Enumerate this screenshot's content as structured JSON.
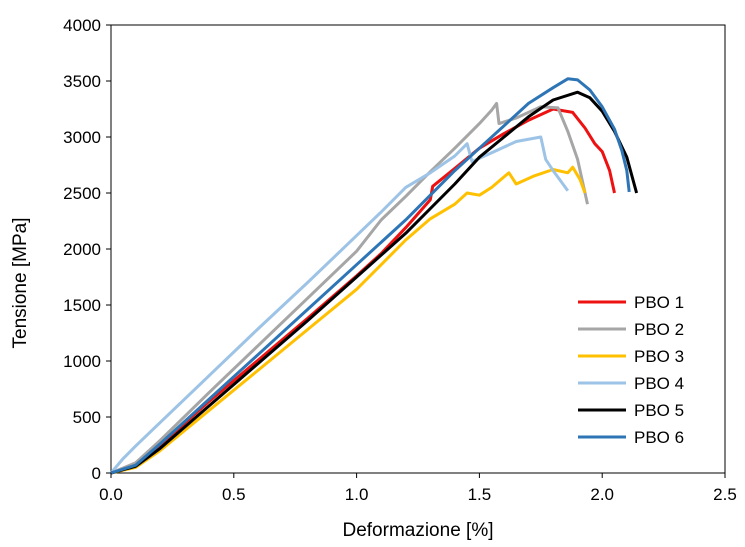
{
  "chart_data": {
    "type": "line",
    "title": "",
    "xlabel": "Deformazione [%]",
    "ylabel": "Tensione [MPa]",
    "xlim": [
      0,
      2.5
    ],
    "ylim": [
      0,
      4000
    ],
    "x_ticks": [
      "0.0",
      "0.5",
      "1.0",
      "1.5",
      "2.0",
      "2.5"
    ],
    "y_ticks": [
      "0",
      "500",
      "1000",
      "1500",
      "2000",
      "2500",
      "3000",
      "3500",
      "4000"
    ],
    "grid": false,
    "legend_position": "right",
    "series": [
      {
        "name": "PBO 1",
        "color": "#ee1111",
        "points": [
          [
            0,
            0
          ],
          [
            0.1,
            70
          ],
          [
            0.2,
            250
          ],
          [
            0.4,
            640
          ],
          [
            0.6,
            1010
          ],
          [
            0.8,
            1380
          ],
          [
            1.0,
            1760
          ],
          [
            1.1,
            1960
          ],
          [
            1.2,
            2190
          ],
          [
            1.3,
            2440
          ],
          [
            1.31,
            2560
          ],
          [
            1.4,
            2720
          ],
          [
            1.5,
            2900
          ],
          [
            1.6,
            3030
          ],
          [
            1.7,
            3150
          ],
          [
            1.8,
            3250
          ],
          [
            1.88,
            3220
          ],
          [
            1.93,
            3080
          ],
          [
            1.97,
            2940
          ],
          [
            2.0,
            2870
          ],
          [
            2.03,
            2700
          ],
          [
            2.05,
            2500
          ]
        ]
      },
      {
        "name": "PBO 2",
        "color": "#a6a6a6",
        "points": [
          [
            0,
            0
          ],
          [
            0.1,
            90
          ],
          [
            0.2,
            290
          ],
          [
            0.4,
            720
          ],
          [
            0.6,
            1140
          ],
          [
            0.8,
            1560
          ],
          [
            1.0,
            1980
          ],
          [
            1.1,
            2260
          ],
          [
            1.2,
            2470
          ],
          [
            1.3,
            2690
          ],
          [
            1.4,
            2900
          ],
          [
            1.5,
            3120
          ],
          [
            1.55,
            3240
          ],
          [
            1.57,
            3300
          ],
          [
            1.58,
            3120
          ],
          [
            1.65,
            3170
          ],
          [
            1.75,
            3270
          ],
          [
            1.82,
            3260
          ],
          [
            1.86,
            3050
          ],
          [
            1.9,
            2800
          ],
          [
            1.94,
            2400
          ]
        ]
      },
      {
        "name": "PBO 3",
        "color": "#ffc000",
        "points": [
          [
            0,
            0
          ],
          [
            0.1,
            50
          ],
          [
            0.2,
            200
          ],
          [
            0.4,
            560
          ],
          [
            0.6,
            920
          ],
          [
            0.8,
            1280
          ],
          [
            1.0,
            1640
          ],
          [
            1.1,
            1860
          ],
          [
            1.2,
            2080
          ],
          [
            1.3,
            2270
          ],
          [
            1.4,
            2400
          ],
          [
            1.45,
            2500
          ],
          [
            1.5,
            2480
          ],
          [
            1.55,
            2550
          ],
          [
            1.62,
            2680
          ],
          [
            1.65,
            2580
          ],
          [
            1.72,
            2650
          ],
          [
            1.8,
            2710
          ],
          [
            1.86,
            2680
          ],
          [
            1.88,
            2730
          ],
          [
            1.91,
            2620
          ],
          [
            1.93,
            2500
          ]
        ]
      },
      {
        "name": "PBO 4",
        "color": "#9dc3e6",
        "points": [
          [
            0,
            0
          ],
          [
            0.05,
            130
          ],
          [
            0.1,
            240
          ],
          [
            0.2,
            450
          ],
          [
            0.4,
            870
          ],
          [
            0.6,
            1290
          ],
          [
            0.8,
            1700
          ],
          [
            1.0,
            2120
          ],
          [
            1.1,
            2330
          ],
          [
            1.2,
            2550
          ],
          [
            1.3,
            2680
          ],
          [
            1.4,
            2830
          ],
          [
            1.45,
            2940
          ],
          [
            1.47,
            2780
          ],
          [
            1.55,
            2860
          ],
          [
            1.65,
            2960
          ],
          [
            1.75,
            3000
          ],
          [
            1.77,
            2800
          ],
          [
            1.8,
            2700
          ],
          [
            1.84,
            2580
          ],
          [
            1.86,
            2520
          ]
        ]
      },
      {
        "name": "PBO 5",
        "color": "#000000",
        "points": [
          [
            0,
            0
          ],
          [
            0.1,
            60
          ],
          [
            0.2,
            220
          ],
          [
            0.4,
            600
          ],
          [
            0.6,
            980
          ],
          [
            0.8,
            1360
          ],
          [
            1.0,
            1750
          ],
          [
            1.2,
            2140
          ],
          [
            1.4,
            2580
          ],
          [
            1.5,
            2820
          ],
          [
            1.6,
            3000
          ],
          [
            1.7,
            3180
          ],
          [
            1.8,
            3330
          ],
          [
            1.9,
            3400
          ],
          [
            1.95,
            3350
          ],
          [
            2.0,
            3230
          ],
          [
            2.05,
            3050
          ],
          [
            2.1,
            2820
          ],
          [
            2.14,
            2500
          ]
        ]
      },
      {
        "name": "PBO 6",
        "color": "#2e75b6",
        "points": [
          [
            0,
            0
          ],
          [
            0.1,
            70
          ],
          [
            0.2,
            260
          ],
          [
            0.4,
            660
          ],
          [
            0.6,
            1060
          ],
          [
            0.8,
            1460
          ],
          [
            1.0,
            1860
          ],
          [
            1.2,
            2260
          ],
          [
            1.4,
            2700
          ],
          [
            1.5,
            2900
          ],
          [
            1.6,
            3100
          ],
          [
            1.7,
            3300
          ],
          [
            1.8,
            3440
          ],
          [
            1.86,
            3520
          ],
          [
            1.9,
            3510
          ],
          [
            1.95,
            3420
          ],
          [
            2.0,
            3270
          ],
          [
            2.05,
            3070
          ],
          [
            2.08,
            2880
          ],
          [
            2.1,
            2700
          ],
          [
            2.11,
            2510
          ]
        ]
      }
    ]
  }
}
